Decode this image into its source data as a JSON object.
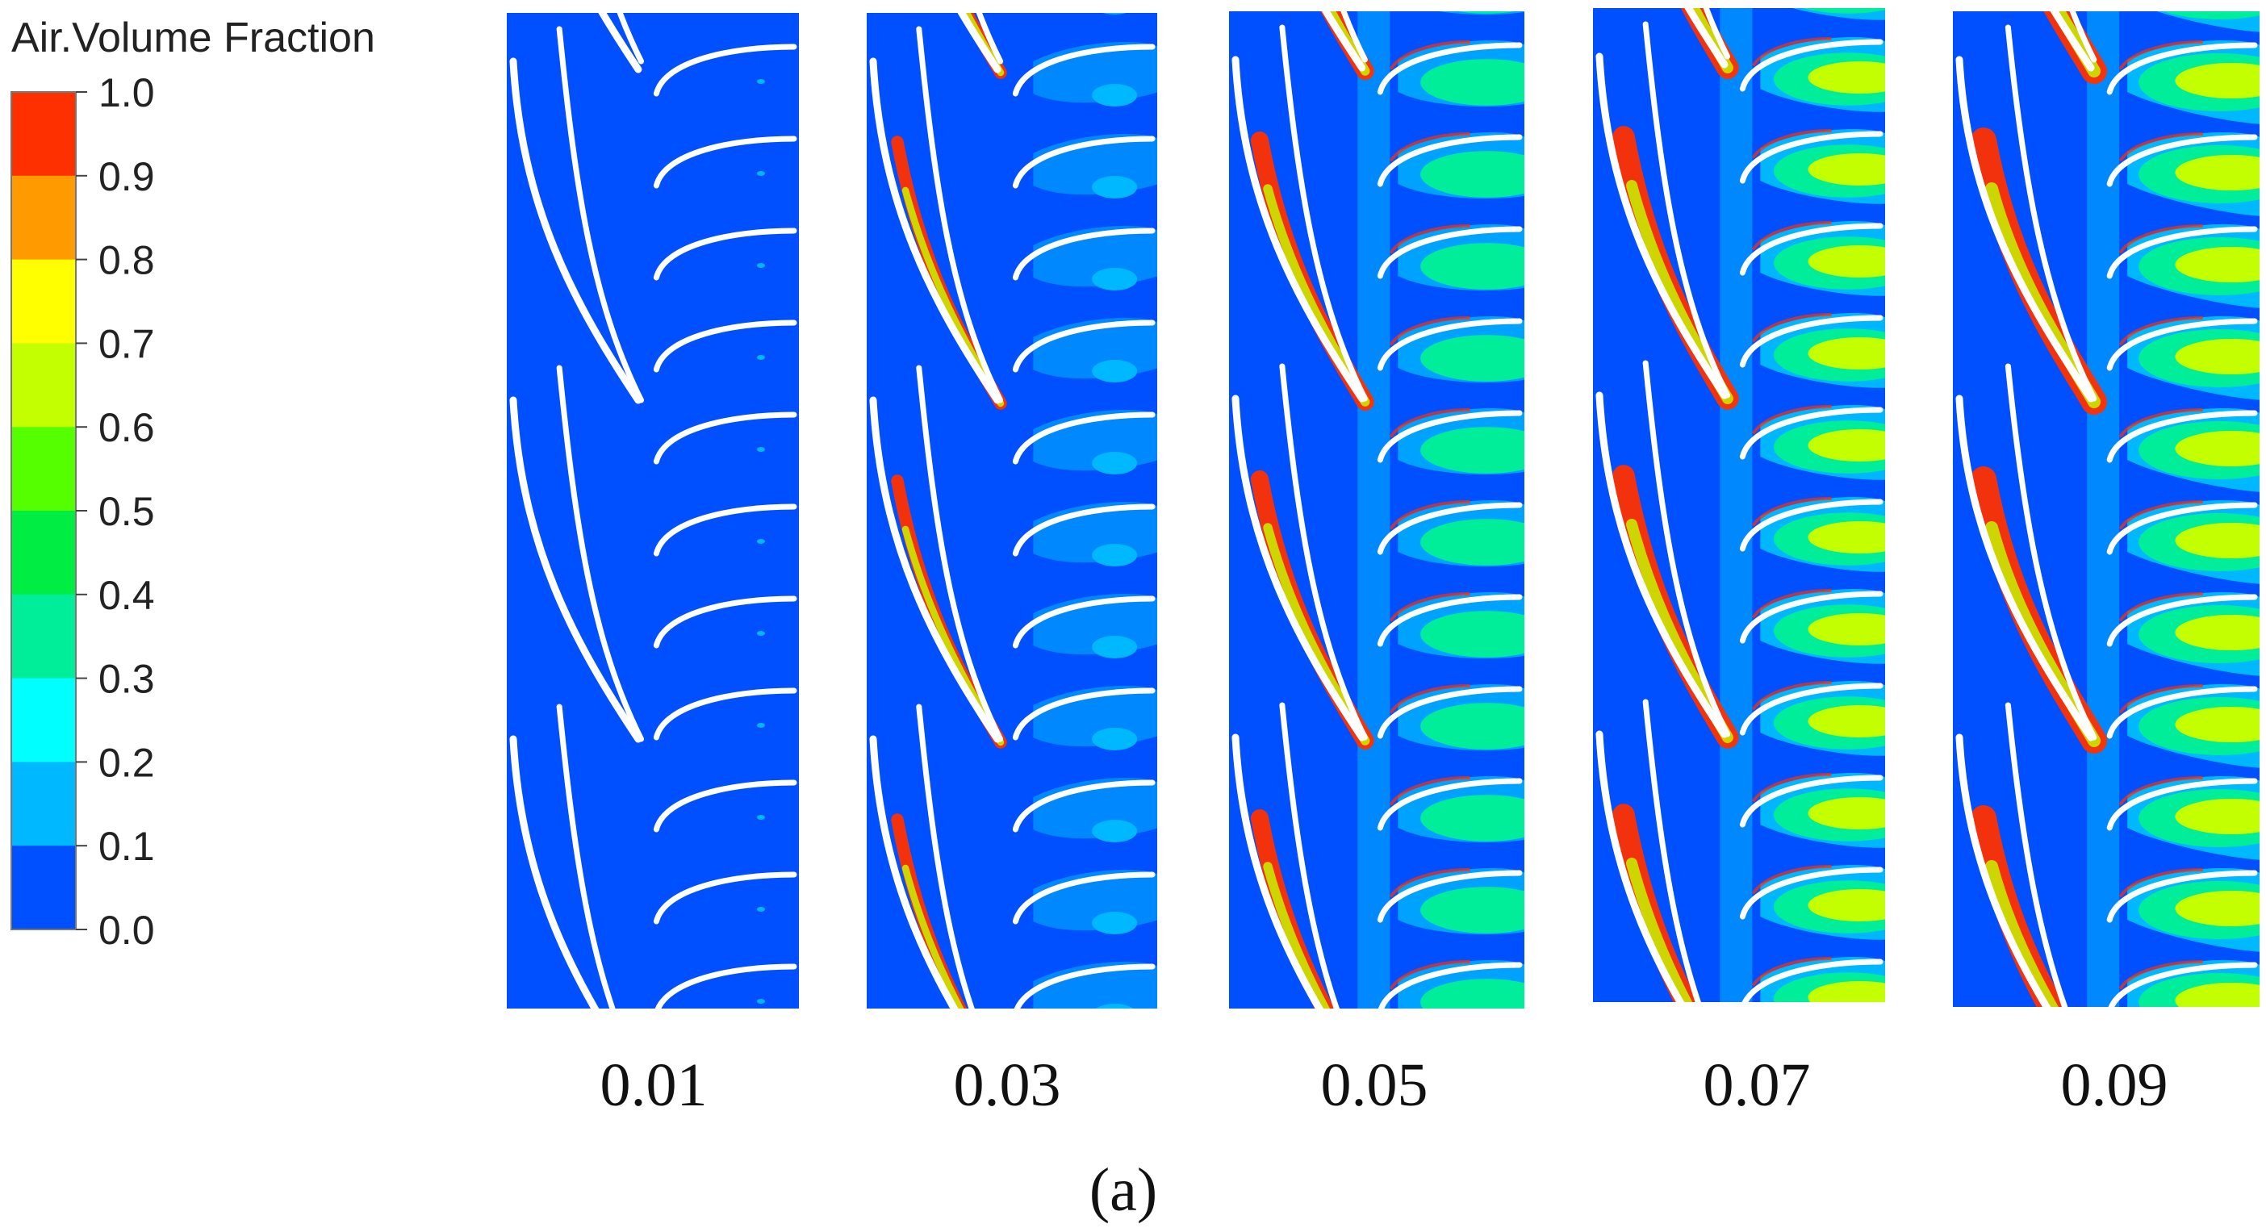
{
  "legend": {
    "title": "Air.Volume Fraction",
    "levels": [
      {
        "label": "1.0",
        "color": "#ff3000"
      },
      {
        "label": "0.9",
        "color": "#ff8800"
      },
      {
        "label": "0.8",
        "color": "#ffc400"
      },
      {
        "label": "0.7",
        "color": "#ffff00"
      },
      {
        "label": "0.6",
        "color": "#c0ff00"
      },
      {
        "label": "0.5",
        "color": "#55ff00"
      },
      {
        "label": "0.4",
        "color": "#00f040"
      },
      {
        "label": "0.3",
        "color": "#00ee99"
      },
      {
        "label": "0.2",
        "color": "#00ffff"
      },
      {
        "label": "0.1",
        "color": "#00b8ff"
      },
      {
        "label": "0.0",
        "color": "#0050ff"
      }
    ],
    "bin_colors": [
      "#ff3000",
      "#ff9a00",
      "#ffff00",
      "#c4ff00",
      "#55ff00",
      "#00ee44",
      "#00ee99",
      "#00ffff",
      "#00b8ff",
      "#0050ff"
    ]
  },
  "colors": {
    "background_liquid": "#0050ff",
    "blade": "#ffffff",
    "low": "#00b8ff",
    "mid": "#00ee99",
    "high": "#c4ff00",
    "peak": "#ff3000"
  },
  "panels": [
    {
      "label": "0.01",
      "intensity": 0.0
    },
    {
      "label": "0.03",
      "intensity": 0.25
    },
    {
      "label": "0.05",
      "intensity": 0.55
    },
    {
      "label": "0.07",
      "intensity": 0.8
    },
    {
      "label": "0.09",
      "intensity": 1.0
    }
  ],
  "caption": "(a)"
}
